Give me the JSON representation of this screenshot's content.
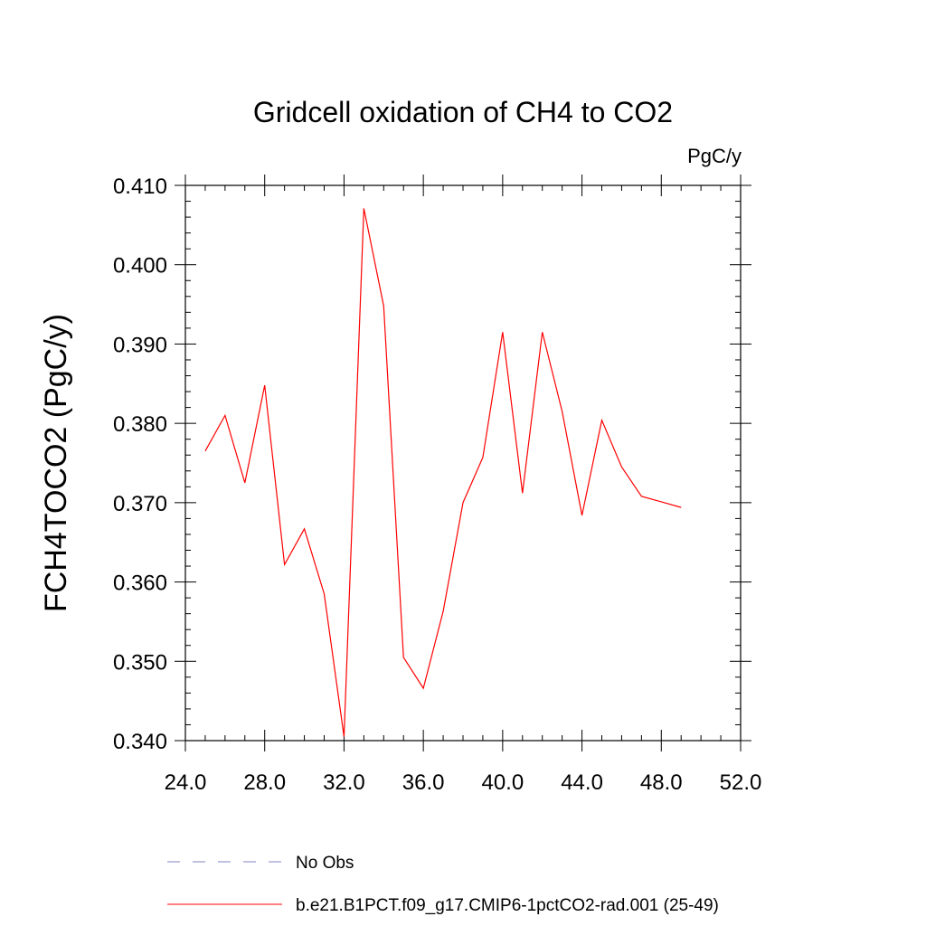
{
  "chart_data": {
    "type": "line",
    "title": "Gridcell oxidation of CH4 to CO2",
    "units": "PgC/y",
    "ylabel": "FCH4TOCO2  (PgC/y)",
    "xlabel": "",
    "xlim": [
      24.0,
      52.0
    ],
    "ylim": [
      0.34,
      0.41
    ],
    "x_ticks": [
      "24.0",
      "28.0",
      "32.0",
      "36.0",
      "40.0",
      "44.0",
      "48.0",
      "52.0"
    ],
    "y_ticks": [
      "0.340",
      "0.350",
      "0.360",
      "0.370",
      "0.380",
      "0.390",
      "0.400",
      "0.410"
    ],
    "grid": false,
    "legend_position": "bottom",
    "series": [
      {
        "name": "b.e21.B1PCT.f09_g17.CMIP6-1pctCO2-rad.001 (25-49)",
        "color": "#ff0000",
        "style": "solid",
        "x": [
          25,
          26,
          27,
          28,
          29,
          30,
          31,
          32,
          33,
          34,
          35,
          36,
          37,
          38,
          39,
          40,
          41,
          42,
          43,
          44,
          45,
          46,
          47,
          48,
          49
        ],
        "y": [
          0.3765,
          0.381,
          0.3725,
          0.3848,
          0.3622,
          0.3667,
          0.3585,
          0.3405,
          0.4071,
          0.3948,
          0.3505,
          0.3466,
          0.3563,
          0.37,
          0.3757,
          0.3915,
          0.3712,
          0.3915,
          0.3815,
          0.3684,
          0.3804,
          0.3745,
          0.3708,
          0.3701,
          0.3694
        ]
      }
    ],
    "legend": [
      {
        "label": "No Obs",
        "color": "#8080c0",
        "style": "dashed"
      },
      {
        "label": "b.e21.B1PCT.f09_g17.CMIP6-1pctCO2-rad.001 (25-49)",
        "color": "#ff0000",
        "style": "solid"
      }
    ]
  }
}
